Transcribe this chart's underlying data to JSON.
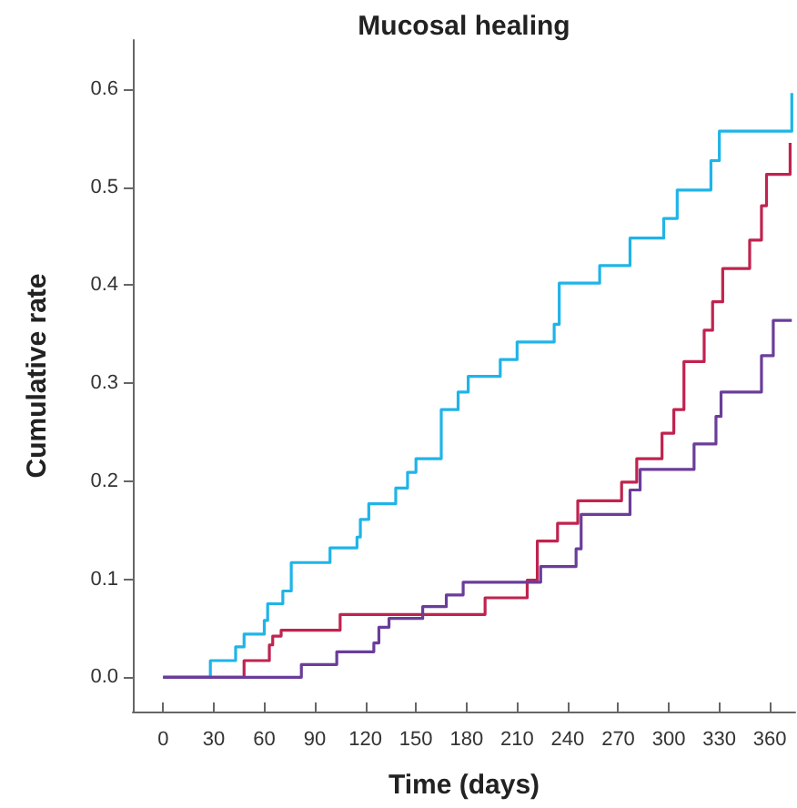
{
  "chart_data": {
    "type": "step",
    "title": "Mucosal healing",
    "xlabel": "Time (days)",
    "ylabel": "Cumulative rate",
    "xlim": [
      -18,
      375
    ],
    "xticks": [
      0,
      30,
      60,
      90,
      120,
      150,
      180,
      210,
      240,
      270,
      300,
      330,
      360
    ],
    "ylim": [
      -0.035,
      0.65
    ],
    "yticks": [
      {
        "value": 0,
        "label": "0.0"
      },
      {
        "value": 0.1,
        "label": "0.1"
      },
      {
        "value": 0.2,
        "label": "0.2"
      },
      {
        "value": 0.3,
        "label": "0.3"
      },
      {
        "value": 0.4,
        "label": "0.4"
      },
      {
        "value": 0.5,
        "label": "0.5"
      },
      {
        "value": 0.6,
        "label": "0.6"
      }
    ],
    "grid": false,
    "marker": "none",
    "line_style": "solid",
    "series": [
      {
        "color": "#1fb4e8",
        "x": [
          0,
          28,
          43,
          48,
          60,
          62,
          71,
          76,
          99,
          115,
          117,
          122,
          138,
          145,
          150,
          165,
          175,
          181,
          200,
          210,
          232,
          235,
          259,
          277,
          297,
          305,
          325,
          330,
          373
        ],
        "values": [
          0,
          0.017,
          0.031,
          0.044,
          0.058,
          0.075,
          0.088,
          0.117,
          0.132,
          0.143,
          0.161,
          0.177,
          0.193,
          0.209,
          0.223,
          0.273,
          0.291,
          0.307,
          0.324,
          0.342,
          0.36,
          0.402,
          0.42,
          0.448,
          0.468,
          0.497,
          0.527,
          0.557,
          0.596
        ]
      },
      {
        "color": "#c0234f",
        "x": [
          0,
          48,
          63,
          65,
          70,
          105,
          191,
          216,
          222,
          234,
          246,
          272,
          281,
          296,
          303,
          309,
          321,
          326,
          332,
          348,
          355,
          358,
          372
        ],
        "values": [
          0,
          0.017,
          0.033,
          0.042,
          0.048,
          0.064,
          0.081,
          0.099,
          0.139,
          0.157,
          0.18,
          0.199,
          0.223,
          0.249,
          0.273,
          0.322,
          0.354,
          0.383,
          0.417,
          0.446,
          0.481,
          0.513,
          0.545
        ]
      },
      {
        "color": "#6a3d9a",
        "x": [
          0,
          82,
          103,
          125,
          128,
          134,
          154,
          168,
          178,
          224,
          245,
          248,
          277,
          283,
          315,
          328,
          331,
          355,
          362,
          373
        ],
        "values": [
          0,
          0.013,
          0.026,
          0.035,
          0.051,
          0.06,
          0.072,
          0.084,
          0.097,
          0.113,
          0.131,
          0.166,
          0.191,
          0.212,
          0.238,
          0.266,
          0.291,
          0.328,
          0.364,
          0.364
        ]
      }
    ]
  }
}
